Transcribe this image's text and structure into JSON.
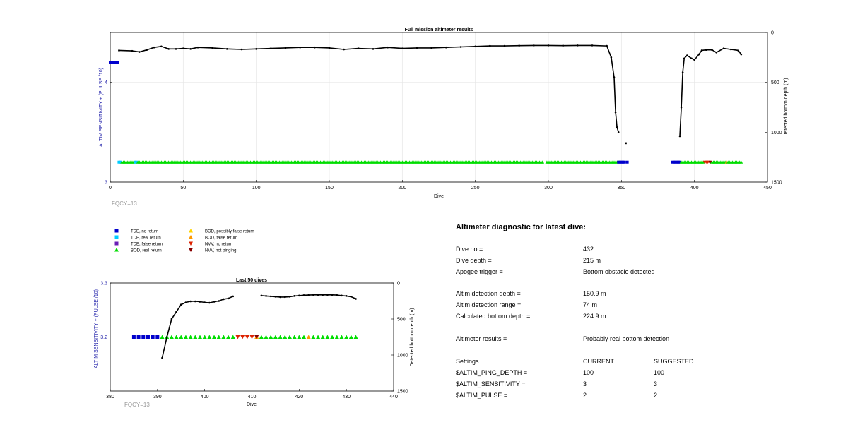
{
  "charts": {
    "main": {
      "title": "Full mission altimeter results",
      "xlabel": "Dive",
      "ylabel_left": "ALTIM SENSITIVITY + (PULSE /10)",
      "ylabel_right": "Detected bottom depth (m)",
      "xticks": [
        "0",
        "50",
        "100",
        "150",
        "200",
        "250",
        "300",
        "350",
        "400",
        "450"
      ],
      "yticks_left": [
        "3",
        "4"
      ],
      "yticks_right": [
        "0",
        "500",
        "1000",
        "1500"
      ],
      "note": "FQCY=13"
    },
    "last50": {
      "title": "Last 50 dives",
      "xlabel": "Dive",
      "ylabel_left": "ALTIM SENSITIVITY + (PULSE /10)",
      "ylabel_right": "Detected bottom depth (m)",
      "xticks": [
        "380",
        "390",
        "400",
        "410",
        "420",
        "430",
        "440"
      ],
      "yticks_left": [
        "3.2",
        "3.3"
      ],
      "yticks_right": [
        "0",
        "500",
        "1000",
        "1500"
      ],
      "note": "FQCY=13"
    }
  },
  "legend": [
    {
      "label": "TDE, no return",
      "color": "#0000cc",
      "shape": "square"
    },
    {
      "label": "TDE, real return",
      "color": "#00ccff",
      "shape": "square"
    },
    {
      "label": "TDE, false return",
      "color": "#6a1fb5",
      "shape": "square"
    },
    {
      "label": "BOD, real return",
      "color": "#00dd00",
      "shape": "triangle-up"
    },
    {
      "label": "BOD, possibly false return",
      "color": "#ffd400",
      "shape": "triangle-up"
    },
    {
      "label": "BOD, false return",
      "color": "#ff9900",
      "shape": "triangle-up"
    },
    {
      "label": "NVV, no return",
      "color": "#dd2200",
      "shape": "triangle-down"
    },
    {
      "label": "NVV, not pinging",
      "color": "#880000",
      "shape": "triangle-down"
    }
  ],
  "chart_data": [
    {
      "type": "scatter",
      "title": "Full mission altimeter results",
      "xlabel": "Dive",
      "ylabel": "ALTIM SENSITIVITY + (PULSE /10)",
      "ylabel_right": "Detected bottom depth (m)",
      "xlim": [
        0,
        450
      ],
      "ylim": [
        3,
        4.5
      ],
      "ylim_right": [
        1500,
        0
      ],
      "grid": true,
      "series": [
        {
          "name": "TDE, no return",
          "segments": [
            [
              0,
              4.2
            ],
            [
              5,
              4.2
            ]
          ]
        },
        {
          "name": "Detected bottom depth (m)",
          "axis": "right",
          "x": [
            6,
            15,
            20,
            25,
            30,
            35,
            40,
            45,
            50,
            55,
            60,
            70,
            80,
            90,
            100,
            110,
            120,
            130,
            140,
            150,
            160,
            170,
            180,
            190,
            200,
            210,
            220,
            230,
            240,
            250,
            260,
            270,
            280,
            290,
            300,
            310,
            320,
            330,
            340,
            343,
            345,
            346,
            347,
            348,
            390,
            391,
            392,
            393,
            395,
            398,
            400,
            403,
            405,
            408,
            412,
            415,
            420,
            425,
            430,
            432
          ],
          "y": [
            180,
            185,
            195,
            175,
            150,
            140,
            165,
            165,
            160,
            165,
            150,
            155,
            165,
            170,
            165,
            160,
            155,
            150,
            150,
            155,
            170,
            160,
            165,
            150,
            160,
            155,
            155,
            150,
            145,
            140,
            135,
            135,
            132,
            130,
            130,
            132,
            130,
            130,
            135,
            250,
            450,
            800,
            950,
            1000,
            1040,
            750,
            400,
            260,
            230,
            260,
            275,
            220,
            180,
            175,
            175,
            200,
            160,
            170,
            180,
            220
          ]
        },
        {
          "name": "Detected bottom depth (m) outlier",
          "axis": "right",
          "x": [
            353
          ],
          "y": [
            1110
          ]
        }
      ]
    },
    {
      "type": "scatter",
      "title": "Last 50 dives",
      "xlabel": "Dive",
      "ylabel": "ALTIM SENSITIVITY + (PULSE /10)",
      "ylabel_right": "Detected bottom depth (m)",
      "xlim": [
        380,
        440
      ],
      "ylim": [
        3.1,
        3.3
      ],
      "ylim_right": [
        1500,
        0
      ],
      "series": [
        {
          "name": "TDE, no return",
          "x": [
            385,
            386,
            387,
            388,
            389,
            390
          ],
          "y": [
            3.2,
            3.2,
            3.2,
            3.2,
            3.2,
            3.2
          ]
        },
        {
          "name": "BOD, real return",
          "x": [
            391,
            392,
            393,
            394,
            395,
            396,
            397,
            398,
            399,
            400,
            401,
            402,
            403,
            404,
            405,
            406,
            412,
            413,
            414,
            415,
            416,
            417,
            418,
            419,
            420,
            421,
            423,
            424,
            425,
            426,
            427,
            428,
            429,
            430,
            431,
            432
          ],
          "y": [
            3.2,
            3.2,
            3.2,
            3.2,
            3.2,
            3.2,
            3.2,
            3.2,
            3.2,
            3.2,
            3.2,
            3.2,
            3.2,
            3.2,
            3.2,
            3.2,
            3.2,
            3.2,
            3.2,
            3.2,
            3.2,
            3.2,
            3.2,
            3.2,
            3.2,
            3.2,
            3.2,
            3.2,
            3.2,
            3.2,
            3.2,
            3.2,
            3.2,
            3.2,
            3.2,
            3.2
          ]
        },
        {
          "name": "BOD, false return",
          "x": [
            411,
            422
          ],
          "y": [
            3.2,
            3.2
          ]
        },
        {
          "name": "NVV, no return",
          "x": [
            407,
            408,
            409,
            410
          ],
          "y": [
            3.2,
            3.2,
            3.2,
            3.2
          ]
        },
        {
          "name": "NVV, not pinging",
          "x": [
            411
          ],
          "y": [
            3.2
          ]
        },
        {
          "name": "Detected bottom depth (m)",
          "axis": "right",
          "x": [
            391,
            392,
            393,
            394,
            395,
            396,
            397,
            398,
            399,
            400,
            401,
            402,
            403,
            404,
            405,
            406,
            412,
            413,
            414,
            415,
            416,
            417,
            418,
            419,
            420,
            421,
            422,
            423,
            424,
            425,
            426,
            427,
            428,
            429,
            430,
            431,
            432
          ],
          "y": [
            1040,
            750,
            500,
            400,
            300,
            270,
            255,
            255,
            260,
            270,
            275,
            260,
            250,
            225,
            215,
            185,
            175,
            180,
            185,
            190,
            195,
            195,
            190,
            180,
            175,
            170,
            168,
            165,
            165,
            165,
            165,
            165,
            168,
            175,
            180,
            190,
            220
          ]
        }
      ]
    }
  ],
  "diagnostic": {
    "title": "Altimeter diagnostic for latest dive:",
    "rows": [
      {
        "label": "Dive no =",
        "value": "432"
      },
      {
        "label": "Dive depth =",
        "value": "215 m"
      },
      {
        "label": "Apogee trigger =",
        "value": "Bottom obstacle detected"
      },
      {
        "label": "Altim detection depth =",
        "value": "150.9 m"
      },
      {
        "label": "Altim detection range =",
        "value": "74 m"
      },
      {
        "label": "Calculated bottom depth =",
        "value": "224.9 m"
      },
      {
        "label": "Altimeter results =",
        "value": "Probably real bottom detection"
      }
    ],
    "settings_header": {
      "label": "Settings",
      "current": "CURRENT",
      "suggested": "SUGGESTED"
    },
    "settings": [
      {
        "label": "$ALTIM_PING_DEPTH =",
        "current": "100",
        "suggested": "100"
      },
      {
        "label": "$ALTIM_SENSITIVITY =",
        "current": "3",
        "suggested": "3"
      },
      {
        "label": "$ALTIM_PULSE =",
        "current": "2",
        "suggested": "2"
      }
    ]
  }
}
